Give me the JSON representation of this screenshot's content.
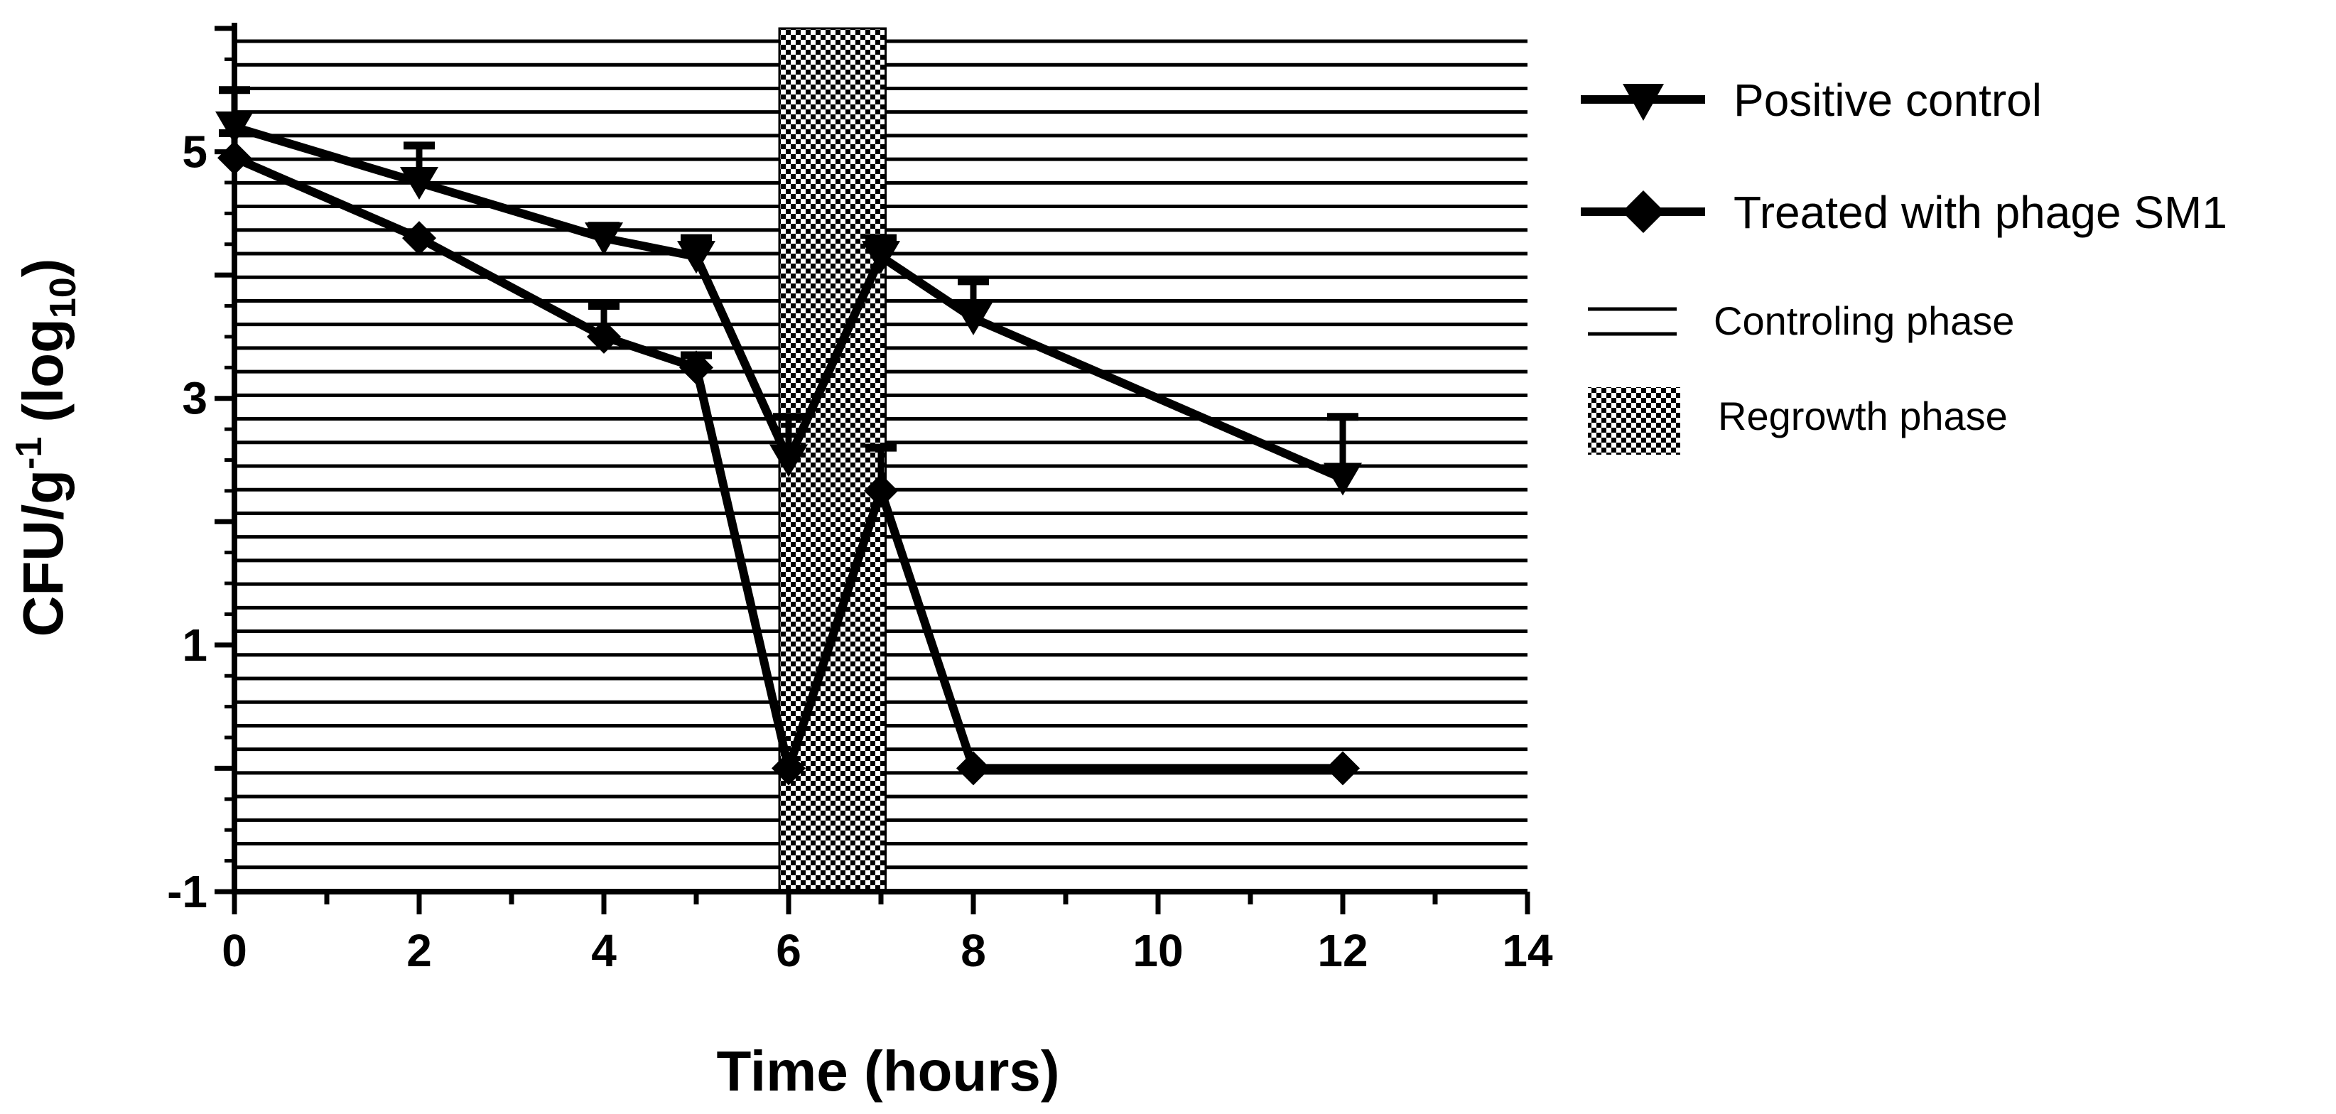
{
  "chart_data": {
    "type": "line",
    "title": "",
    "xlabel": "Time (hours)",
    "ylabel_main": "CFU/g",
    "ylabel_sup": "-1",
    "ylabel_log_prefix": "(log",
    "ylabel_log_sub": "10",
    "ylabel_log_suffix": ")",
    "xlim": [
      0,
      14
    ],
    "ylim": [
      -1,
      6.0
    ],
    "x_ticks": [
      0,
      2,
      4,
      6,
      8,
      10,
      12,
      14
    ],
    "x_tick_labels": [
      "0",
      "2",
      "4",
      "6",
      "8",
      "10",
      "12",
      "14"
    ],
    "y_ticks": [
      -1,
      1,
      3,
      5
    ],
    "y_tick_labels": [
      "-1",
      "1",
      "3",
      "5"
    ],
    "series": [
      {
        "name": "Positive control",
        "marker": "triangle-down",
        "x": [
          0,
          2,
          4,
          5,
          6,
          7,
          8,
          12
        ],
        "y": [
          5.2,
          4.75,
          4.3,
          4.15,
          2.5,
          4.15,
          3.65,
          2.35
        ],
        "error_upper": [
          5.5,
          5.05,
          4.4,
          4.3,
          2.85,
          4.3,
          3.95,
          2.85
        ]
      },
      {
        "name": "Treated with phage SM1",
        "marker": "diamond",
        "x": [
          0,
          2,
          4,
          5,
          6,
          7,
          8,
          12
        ],
        "y": [
          4.95,
          4.3,
          3.5,
          3.25,
          0.0,
          2.25,
          0.0,
          0.0
        ],
        "error_upper": [
          5.15,
          4.3,
          3.75,
          3.35,
          0.0,
          2.6,
          0.0,
          0.0
        ]
      }
    ],
    "phases": [
      {
        "name": "Controling phase",
        "pattern": "horizontal-lines",
        "x_range": [
          0,
          14
        ]
      },
      {
        "name": "Regrowth phase",
        "pattern": "checker",
        "x_range": [
          5.9,
          7.05
        ]
      }
    ],
    "legend_position": "right",
    "grid": false,
    "colors": {
      "line": "#000000",
      "background": "#ffffff"
    }
  }
}
